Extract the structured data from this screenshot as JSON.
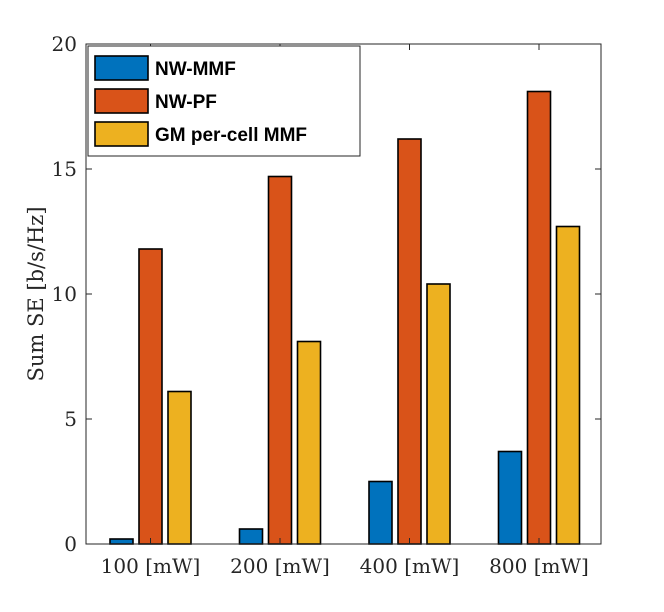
{
  "chart_data": {
    "type": "bar",
    "title": "",
    "xlabel": "",
    "ylabel": "Sum SE [b/s/Hz]",
    "ylim": [
      0,
      20
    ],
    "yticks": [
      0,
      5,
      10,
      15,
      20
    ],
    "grid": false,
    "legend_position": "top-left",
    "categories": [
      "100 [mW]",
      "200 [mW]",
      "400 [mW]",
      "800 [mW]"
    ],
    "series": [
      {
        "name": "NW-MMF",
        "color": "#0072BD",
        "values": [
          0.2,
          0.6,
          2.5,
          3.7
        ]
      },
      {
        "name": "NW-PF",
        "color": "#D95319",
        "values": [
          11.8,
          14.7,
          16.2,
          18.1
        ]
      },
      {
        "name": "GM per-cell MMF",
        "color": "#EDB120",
        "values": [
          6.1,
          8.1,
          10.4,
          12.7
        ]
      }
    ]
  }
}
